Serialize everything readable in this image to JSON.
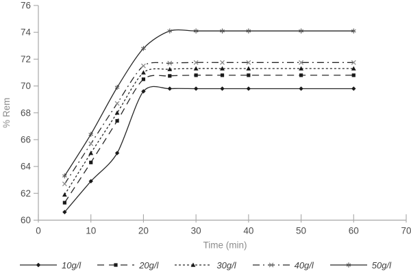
{
  "chart_data": {
    "type": "line",
    "xlabel": "Time (min)",
    "ylabel": "% Rem",
    "x": [
      5,
      10,
      15,
      20,
      25,
      30,
      35,
      40,
      50,
      60
    ],
    "series": [
      {
        "name": "10g/l",
        "marker": "diamond",
        "line_style": "solid",
        "values": [
          60.6,
          62.9,
          65.0,
          69.6,
          69.8,
          69.8,
          69.8,
          69.8,
          69.8,
          69.8
        ]
      },
      {
        "name": "20g/l",
        "marker": "square",
        "line_style": "long-dash",
        "values": [
          61.3,
          64.3,
          67.4,
          70.5,
          70.75,
          70.8,
          70.8,
          70.8,
          70.8,
          70.8
        ]
      },
      {
        "name": "30g/l",
        "marker": "triangle",
        "line_style": "short-dash",
        "values": [
          61.9,
          65.0,
          68.0,
          71.0,
          71.25,
          71.3,
          71.3,
          71.3,
          71.3,
          71.3
        ]
      },
      {
        "name": "40g/l",
        "marker": "x",
        "line_style": "dash-dot",
        "values": [
          62.7,
          65.7,
          68.7,
          71.5,
          71.7,
          71.75,
          71.75,
          71.75,
          71.75,
          71.75
        ]
      },
      {
        "name": "50g/l",
        "marker": "asterisk",
        "line_style": "solid",
        "values": [
          63.3,
          66.4,
          69.9,
          72.8,
          74.1,
          74.1,
          74.1,
          74.1,
          74.1,
          74.1
        ]
      }
    ],
    "xlim": [
      0,
      70
    ],
    "ylim": [
      60,
      76
    ],
    "xticks": [
      0,
      10,
      20,
      30,
      40,
      50,
      60,
      70
    ],
    "yticks": [
      60,
      62,
      64,
      66,
      68,
      70,
      72,
      74,
      76
    ],
    "grid": false,
    "legend_position": "bottom",
    "smooth_lines": true,
    "colors": {
      "series_line": "#262626",
      "marker_fill": "#1a1a1a",
      "x_marker": "#8a8a8a",
      "asterisk_marker": "#555555",
      "axis_line": "#a6a6a6",
      "tick_label": "#4d4d4d",
      "axis_title": "#8c8c8c",
      "legend_label": "#404040"
    }
  }
}
